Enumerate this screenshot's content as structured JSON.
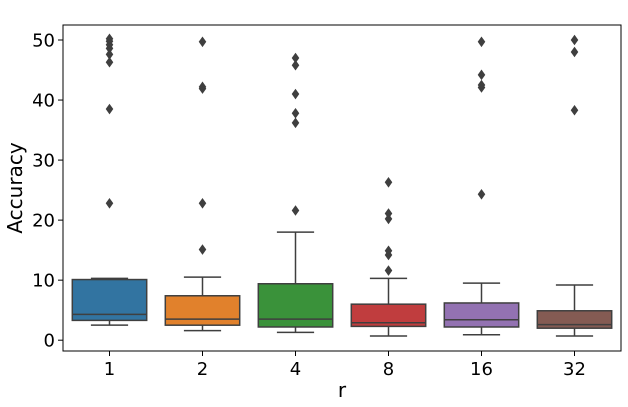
{
  "chart_data": {
    "type": "box",
    "xlabel": "r",
    "ylabel": "Accuracy",
    "ylim": [
      -1.8,
      52.5
    ],
    "yticks": [
      0,
      10,
      20,
      30,
      40,
      50
    ],
    "grid": false,
    "legend": "none",
    "categories": [
      "1",
      "2",
      "4",
      "8",
      "16",
      "32"
    ],
    "boxes": [
      {
        "name": "1",
        "color": "#3274a1",
        "whisker_low": 2.5,
        "q1": 3.3,
        "median": 4.3,
        "q3": 10.1,
        "whisker_high": 10.3,
        "outliers": [
          22.8,
          38.5,
          46.3,
          47.6,
          48.6,
          49.2,
          49.8,
          50.2
        ]
      },
      {
        "name": "2",
        "color": "#e1812c",
        "whisker_low": 1.6,
        "q1": 2.5,
        "median": 3.5,
        "q3": 7.4,
        "whisker_high": 10.5,
        "outliers": [
          15.1,
          22.8,
          41.9,
          42.2,
          49.7
        ]
      },
      {
        "name": "4",
        "color": "#3a923a",
        "whisker_low": 1.3,
        "q1": 2.2,
        "median": 3.5,
        "q3": 9.4,
        "whisker_high": 18.0,
        "outliers": [
          21.6,
          36.2,
          37.8,
          41.0,
          45.8,
          47.0
        ]
      },
      {
        "name": "8",
        "color": "#c03d3e",
        "whisker_low": 0.7,
        "q1": 2.3,
        "median": 2.9,
        "q3": 6.0,
        "whisker_high": 10.3,
        "outliers": [
          11.6,
          14.2,
          14.9,
          20.2,
          21.1,
          26.3
        ]
      },
      {
        "name": "16",
        "color": "#9372b2",
        "whisker_low": 0.9,
        "q1": 2.2,
        "median": 3.4,
        "q3": 6.2,
        "whisker_high": 9.5,
        "outliers": [
          24.3,
          42.1,
          42.5,
          44.2,
          49.7
        ]
      },
      {
        "name": "32",
        "color": "#845b53",
        "whisker_low": 0.7,
        "q1": 2.0,
        "median": 2.6,
        "q3": 4.9,
        "whisker_high": 9.2,
        "outliers": [
          38.3,
          48.0,
          50.0
        ]
      }
    ]
  }
}
